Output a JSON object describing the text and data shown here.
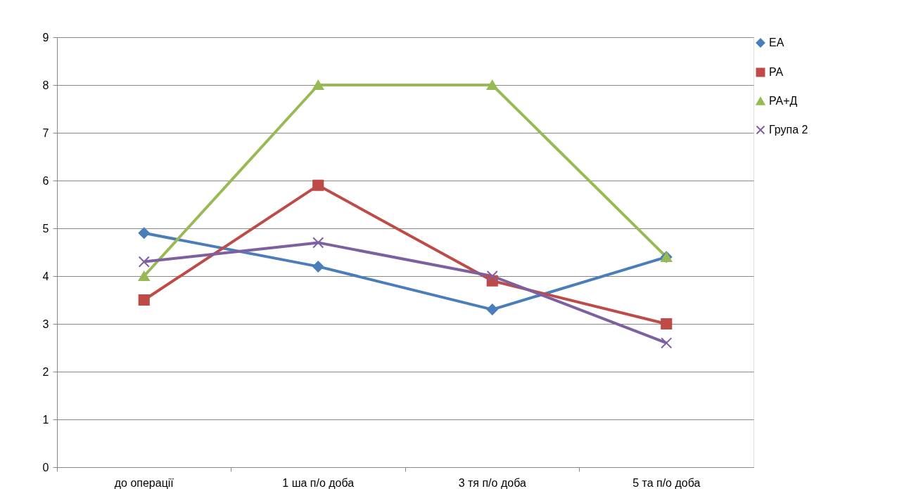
{
  "chart_data": {
    "type": "line",
    "categories": [
      "до операції",
      "1 ша п/о доба",
      "3 тя п/о доба",
      "5 та п/о доба"
    ],
    "series": [
      {
        "name": "ЕА",
        "color": "#4a7ebb",
        "marker": "diamond",
        "values": [
          4.9,
          4.2,
          3.3,
          4.4
        ]
      },
      {
        "name": "РА",
        "color": "#be4b48",
        "marker": "square",
        "values": [
          3.5,
          5.9,
          3.9,
          3.0
        ]
      },
      {
        "name": "РА+Д",
        "color": "#98b954",
        "marker": "triangle",
        "values": [
          4.0,
          8.0,
          8.0,
          4.4
        ]
      },
      {
        "name": "Група 2",
        "color": "#7d60a0",
        "marker": "cross",
        "values": [
          4.3,
          4.7,
          4.0,
          2.6
        ]
      }
    ],
    "ylim": [
      0,
      9
    ],
    "yticks": [
      0,
      1,
      2,
      3,
      4,
      5,
      6,
      7,
      8,
      9
    ],
    "grid": "y",
    "legend": "right",
    "line_style": "solid"
  }
}
